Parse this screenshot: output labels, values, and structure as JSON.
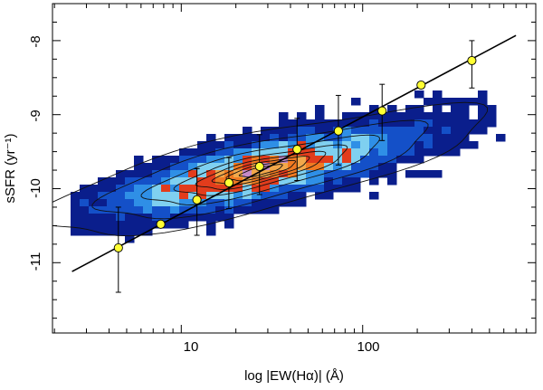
{
  "chart_data": {
    "type": "scatter",
    "title": "",
    "xlabel": "log |EW(Hα)| (Å)",
    "ylabel": "sSFR (yr⁻¹)",
    "xscale": "log",
    "xlim": [
      1.95,
      900
    ],
    "ylim": [
      -11.95,
      -7.5
    ],
    "x_ticks": [
      10,
      100
    ],
    "x_tick_labels": [
      "10",
      "100"
    ],
    "y_ticks": [
      -8,
      -9,
      -10,
      -11
    ],
    "y_tick_labels": [
      "-8",
      "-9",
      "-10",
      "-11"
    ],
    "grid": false,
    "legend": "none",
    "density_colormap": [
      "#0a1e8c",
      "#1450c8",
      "#2f8fe6",
      "#7fd0f0",
      "#e23c1c",
      "#f07a22",
      "#f2a84a",
      "#c48ac8"
    ],
    "fit_line": {
      "x": [
        2.5,
        700
      ],
      "y": [
        -11.12,
        -7.93
      ],
      "color": "#000000"
    },
    "binned_medians": {
      "color": "#ffff33",
      "points": [
        {
          "x": 4.5,
          "y": -10.8,
          "yerr_low": 0.6,
          "yerr_high": 0.55
        },
        {
          "x": 7.7,
          "y": -10.48,
          "yerr_low": 0.0,
          "yerr_high": 0.0
        },
        {
          "x": 12.2,
          "y": -10.15,
          "yerr_low": 0.48,
          "yerr_high": 0.42
        },
        {
          "x": 18.3,
          "y": -9.92,
          "yerr_low": 0.35,
          "yerr_high": 0.34
        },
        {
          "x": 27.0,
          "y": -9.7,
          "yerr_low": 0.38,
          "yerr_high": 0.43
        },
        {
          "x": 43.5,
          "y": -9.47,
          "yerr_low": 0.42,
          "yerr_high": 0.42
        },
        {
          "x": 73.5,
          "y": -9.22,
          "yerr_low": 0.46,
          "yerr_high": 0.48
        },
        {
          "x": 128,
          "y": -8.95,
          "yerr_low": 0.4,
          "yerr_high": 0.36
        },
        {
          "x": 210,
          "y": -8.6,
          "yerr_low": 0.0,
          "yerr_high": 0.0
        },
        {
          "x": 400,
          "y": -8.27,
          "yerr_low": 0.37,
          "yerr_high": 0.27
        }
      ]
    }
  }
}
